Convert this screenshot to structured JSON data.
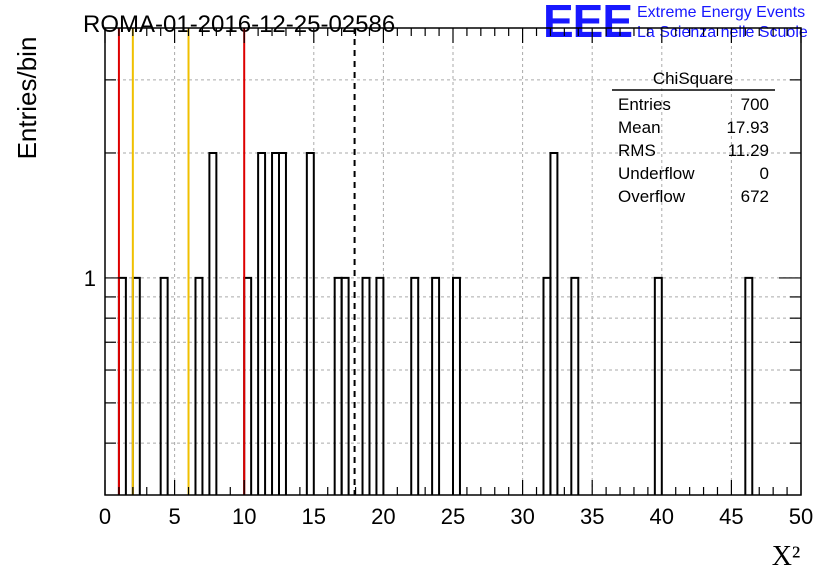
{
  "header": {
    "title": "ROMA-01-2016-12-25-02586",
    "logo_mark": "EEE",
    "logo_line1": "Extreme Energy Events",
    "logo_line2": "La Scienza nelle Scuole"
  },
  "stats": {
    "name": "ChiSquare",
    "rows": [
      {
        "label": "Entries",
        "value": "700"
      },
      {
        "label": "Mean",
        "value": "17.93"
      },
      {
        "label": "RMS",
        "value": "11.29"
      },
      {
        "label": "Underflow",
        "value": "0"
      },
      {
        "label": "Overflow",
        "value": "672"
      }
    ]
  },
  "colors": {
    "histogram": "#000000",
    "red_line": "#dd0000",
    "yellow_line": "#f0c000",
    "logo": "#1818ff",
    "grid": "#aaaaaa"
  },
  "chart_data": {
    "type": "histogram",
    "title": "ROMA-01-2016-12-25-02586",
    "xlabel": "X²",
    "ylabel": "Entries/bin",
    "xlim": [
      0,
      50
    ],
    "ylim": [
      0.3,
      4
    ],
    "y_scale": "log",
    "bin_width": 0.5,
    "x_ticks": [
      0,
      5,
      10,
      15,
      20,
      25,
      30,
      35,
      40,
      45,
      50
    ],
    "y_tick_labels": [
      "1"
    ],
    "grid": true,
    "bins": [
      {
        "x": 1.0,
        "y": 1
      },
      {
        "x": 2.0,
        "y": 1
      },
      {
        "x": 4.0,
        "y": 1
      },
      {
        "x": 6.5,
        "y": 1
      },
      {
        "x": 7.5,
        "y": 2
      },
      {
        "x": 10.0,
        "y": 1
      },
      {
        "x": 11.0,
        "y": 2
      },
      {
        "x": 12.0,
        "y": 2
      },
      {
        "x": 12.5,
        "y": 2
      },
      {
        "x": 14.5,
        "y": 2
      },
      {
        "x": 16.5,
        "y": 1
      },
      {
        "x": 17.0,
        "y": 1
      },
      {
        "x": 18.5,
        "y": 1
      },
      {
        "x": 19.5,
        "y": 1
      },
      {
        "x": 22.0,
        "y": 1
      },
      {
        "x": 23.5,
        "y": 1
      },
      {
        "x": 25.0,
        "y": 1
      },
      {
        "x": 31.5,
        "y": 1
      },
      {
        "x": 32.0,
        "y": 2
      },
      {
        "x": 33.5,
        "y": 1
      },
      {
        "x": 39.5,
        "y": 1
      },
      {
        "x": 46.0,
        "y": 1
      }
    ],
    "vertical_lines": [
      {
        "x": 1,
        "color": "red"
      },
      {
        "x": 2,
        "color": "yellow"
      },
      {
        "x": 6,
        "color": "yellow"
      },
      {
        "x": 10,
        "color": "red"
      },
      {
        "x": 17.93,
        "color": "black",
        "style": "dashed"
      }
    ]
  }
}
